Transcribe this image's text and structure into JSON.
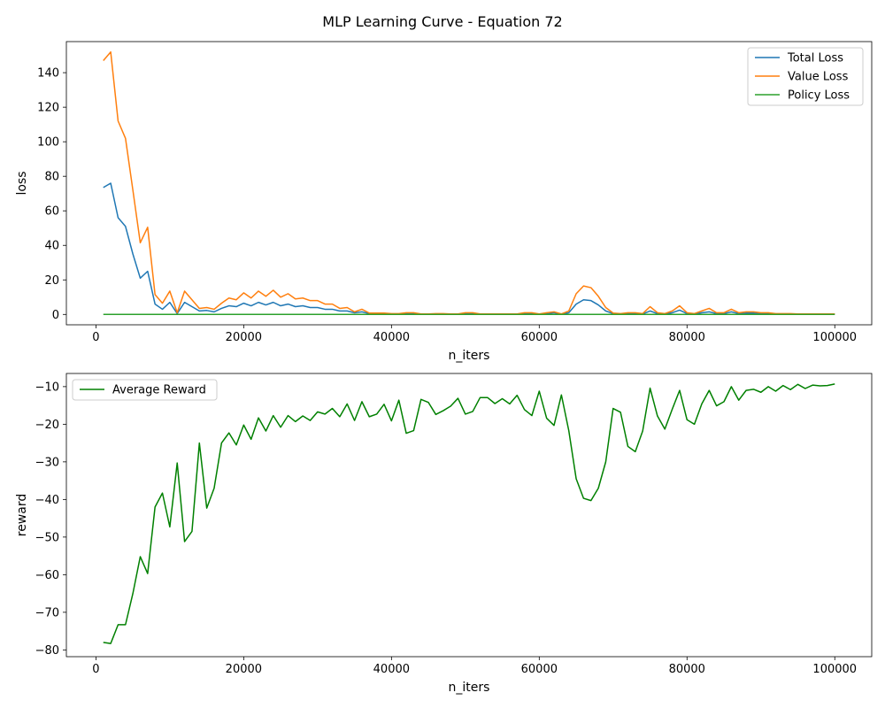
{
  "suptitle": "MLP Learning Curve - Equation 72",
  "chart_data": [
    {
      "type": "line",
      "xlabel": "n_iters",
      "ylabel": "loss",
      "xlim": [
        -4000,
        105000
      ],
      "ylim": [
        -6,
        158
      ],
      "xticks": [
        0,
        20000,
        40000,
        60000,
        80000,
        100000
      ],
      "xtick_labels": [
        "0",
        "20000",
        "40000",
        "60000",
        "80000",
        "100000"
      ],
      "yticks": [
        0,
        20,
        40,
        60,
        80,
        100,
        120,
        140
      ],
      "ytick_labels": [
        "0",
        "20",
        "40",
        "60",
        "80",
        "100",
        "120",
        "140"
      ],
      "legend_position": "top-right",
      "x": [
        1000,
        2000,
        3000,
        4000,
        5000,
        6000,
        7000,
        8000,
        9000,
        10000,
        11000,
        12000,
        13000,
        14000,
        15000,
        16000,
        17000,
        18000,
        19000,
        20000,
        21000,
        22000,
        23000,
        24000,
        25000,
        26000,
        27000,
        28000,
        29000,
        30000,
        31000,
        32000,
        33000,
        34000,
        35000,
        36000,
        37000,
        38000,
        39000,
        40000,
        41000,
        42000,
        43000,
        44000,
        45000,
        46000,
        47000,
        48000,
        49000,
        50000,
        51000,
        52000,
        53000,
        54000,
        55000,
        56000,
        57000,
        58000,
        59000,
        60000,
        61000,
        62000,
        63000,
        64000,
        65000,
        66000,
        67000,
        68000,
        69000,
        70000,
        71000,
        72000,
        73000,
        74000,
        75000,
        76000,
        77000,
        78000,
        79000,
        80000,
        81000,
        82000,
        83000,
        84000,
        85000,
        86000,
        87000,
        88000,
        89000,
        90000,
        91000,
        92000,
        93000,
        94000,
        95000,
        96000,
        97000,
        98000,
        99000,
        100000
      ],
      "series": [
        {
          "name": "Total Loss",
          "color": "#1f77b4",
          "values": [
            73.5,
            76,
            56,
            51,
            35,
            21,
            25,
            6,
            3,
            7,
            0.5,
            7,
            4.5,
            2,
            2.3,
            1.5,
            3.5,
            5,
            4.5,
            6.5,
            5,
            7,
            5.5,
            7,
            5,
            6,
            4.5,
            5,
            4,
            4,
            3,
            3,
            2,
            2,
            1,
            1.5,
            0.5,
            0.5,
            0.5,
            0.3,
            0.3,
            0.5,
            0.5,
            0.2,
            0.2,
            0.3,
            0.3,
            0.2,
            0.2,
            0.5,
            0.5,
            0.2,
            0.2,
            0.2,
            0.2,
            0.2,
            0.2,
            0.5,
            0.5,
            0.2,
            0.5,
            1,
            0.2,
            1,
            6,
            8.5,
            8,
            5.5,
            2,
            0.5,
            0.3,
            0.5,
            0.5,
            0.3,
            2,
            0.5,
            0.3,
            1,
            2.5,
            0.5,
            0.3,
            1,
            1.5,
            0.5,
            0.5,
            1.5,
            0.5,
            0.8,
            0.8,
            0.5,
            0.5,
            0.3,
            0.3,
            0.3,
            0.2,
            0.2,
            0.2,
            0.2,
            0.2,
            0.2
          ]
        },
        {
          "name": "Value Loss",
          "color": "#ff7f0e",
          "values": [
            147,
            152,
            112,
            102,
            72,
            41.5,
            50.5,
            11.5,
            6.5,
            13.5,
            1,
            13.5,
            8.5,
            3.5,
            4,
            3,
            6.5,
            9.5,
            8.5,
            12.5,
            9.5,
            13.5,
            10.5,
            14,
            10,
            12,
            9,
            9.5,
            8,
            8,
            6,
            6,
            3.5,
            4,
            1.5,
            3,
            0.8,
            0.8,
            0.8,
            0.5,
            0.5,
            1,
            1,
            0.3,
            0.3,
            0.5,
            0.5,
            0.3,
            0.3,
            1,
            1,
            0.3,
            0.3,
            0.3,
            0.3,
            0.3,
            0.3,
            1,
            1,
            0.3,
            1,
            1.5,
            0.3,
            2,
            12,
            16.5,
            15.5,
            10.5,
            4,
            0.8,
            0.5,
            1,
            1,
            0.5,
            4.5,
            1,
            0.5,
            2,
            5,
            1,
            0.5,
            2,
            3.5,
            1,
            1,
            3,
            1,
            1.5,
            1.5,
            1,
            1,
            0.5,
            0.5,
            0.5,
            0.3,
            0.3,
            0.3,
            0.3,
            0.3,
            0.3
          ]
        },
        {
          "name": "Policy Loss",
          "color": "#2ca02c",
          "values": [
            0.02,
            0.02,
            0.02,
            0.02,
            0.02,
            0.02,
            0.02,
            0.02,
            0.02,
            0.02,
            0.02,
            0.02,
            0.02,
            0.02,
            0.02,
            0.02,
            0.02,
            0.02,
            0.02,
            0.02,
            0.02,
            0.02,
            0.02,
            0.02,
            0.02,
            0.02,
            0.02,
            0.02,
            0.02,
            0.02,
            0.02,
            0.02,
            0.02,
            0.02,
            0.02,
            0.02,
            0.02,
            0.02,
            0.02,
            0.02,
            0.02,
            0.02,
            0.02,
            0.02,
            0.02,
            0.02,
            0.02,
            0.02,
            0.02,
            0.02,
            0.02,
            0.02,
            0.02,
            0.02,
            0.02,
            0.02,
            0.02,
            0.02,
            0.02,
            0.02,
            0.02,
            0.02,
            0.02,
            0.02,
            0.02,
            0.02,
            0.02,
            0.02,
            0.02,
            0.02,
            0.02,
            0.02,
            0.02,
            0.02,
            0.02,
            0.02,
            0.02,
            0.02,
            0.02,
            0.02,
            0.02,
            0.02,
            0.02,
            0.02,
            0.02,
            0.02,
            0.02,
            0.02,
            0.02,
            0.02,
            0.02,
            0.02,
            0.02,
            0.02,
            0.02,
            0.02,
            0.02,
            0.02,
            0.02,
            0.02
          ]
        }
      ]
    },
    {
      "type": "line",
      "xlabel": "n_iters",
      "ylabel": "reward",
      "xlim": [
        -4000,
        105000
      ],
      "ylim": [
        -81.8,
        -6.5
      ],
      "xticks": [
        0,
        20000,
        40000,
        60000,
        80000,
        100000
      ],
      "xtick_labels": [
        "0",
        "20000",
        "40000",
        "60000",
        "80000",
        "100000"
      ],
      "yticks": [
        -80,
        -70,
        -60,
        -50,
        -40,
        -30,
        -20,
        -10
      ],
      "ytick_labels": [
        "−80",
        "−70",
        "−60",
        "−50",
        "−40",
        "−30",
        "−20",
        "−10"
      ],
      "legend_position": "top-left",
      "x": [
        1000,
        2000,
        3000,
        4000,
        5000,
        6000,
        7000,
        8000,
        9000,
        10000,
        11000,
        12000,
        13000,
        14000,
        15000,
        16000,
        17000,
        18000,
        19000,
        20000,
        21000,
        22000,
        23000,
        24000,
        25000,
        26000,
        27000,
        28000,
        29000,
        30000,
        31000,
        32000,
        33000,
        34000,
        35000,
        36000,
        37000,
        38000,
        39000,
        40000,
        41000,
        42000,
        43000,
        44000,
        45000,
        46000,
        47000,
        48000,
        49000,
        50000,
        51000,
        52000,
        53000,
        54000,
        55000,
        56000,
        57000,
        58000,
        59000,
        60000,
        61000,
        62000,
        63000,
        64000,
        65000,
        66000,
        67000,
        68000,
        69000,
        70000,
        71000,
        72000,
        73000,
        74000,
        75000,
        76000,
        77000,
        78000,
        79000,
        80000,
        81000,
        82000,
        83000,
        84000,
        85000,
        86000,
        87000,
        88000,
        89000,
        90000,
        91000,
        92000,
        93000,
        94000,
        95000,
        96000,
        97000,
        98000,
        99000,
        100000
      ],
      "series": [
        {
          "name": "Average Reward",
          "color": "#008000",
          "values": [
            -78,
            -78.3,
            -73.3,
            -73.3,
            -65,
            -55.2,
            -59.7,
            -42,
            -38.3,
            -47.3,
            -30.3,
            -51.2,
            -48.5,
            -25,
            -42.3,
            -37,
            -25,
            -22.3,
            -25.5,
            -20.2,
            -24,
            -18.3,
            -21.8,
            -17.7,
            -20.8,
            -17.7,
            -19.3,
            -17.8,
            -19,
            -16.7,
            -17.3,
            -15.8,
            -18,
            -14.6,
            -19,
            -14,
            -18,
            -17.3,
            -14.7,
            -19.1,
            -13.6,
            -22.4,
            -21.7,
            -13.4,
            -14.2,
            -17.4,
            -16.4,
            -15.2,
            -13.1,
            -17.3,
            -16.6,
            -12.9,
            -12.9,
            -14.5,
            -13.2,
            -14.6,
            -12.3,
            -16.1,
            -17.7,
            -11.2,
            -18.4,
            -20.3,
            -12.2,
            -21.7,
            -34.5,
            -39.7,
            -40.3,
            -37,
            -30,
            -15.8,
            -16.8,
            -25.9,
            -27.3,
            -21.8,
            -10.4,
            -17.8,
            -21.3,
            -16,
            -11,
            -18.8,
            -20,
            -14.6,
            -11,
            -15.1,
            -14,
            -10,
            -13.6,
            -11,
            -10.7,
            -11.5,
            -10,
            -11.2,
            -9.7,
            -10.8,
            -9.4,
            -10.5,
            -9.6,
            -9.8,
            -9.7,
            -9.3
          ]
        }
      ]
    }
  ]
}
